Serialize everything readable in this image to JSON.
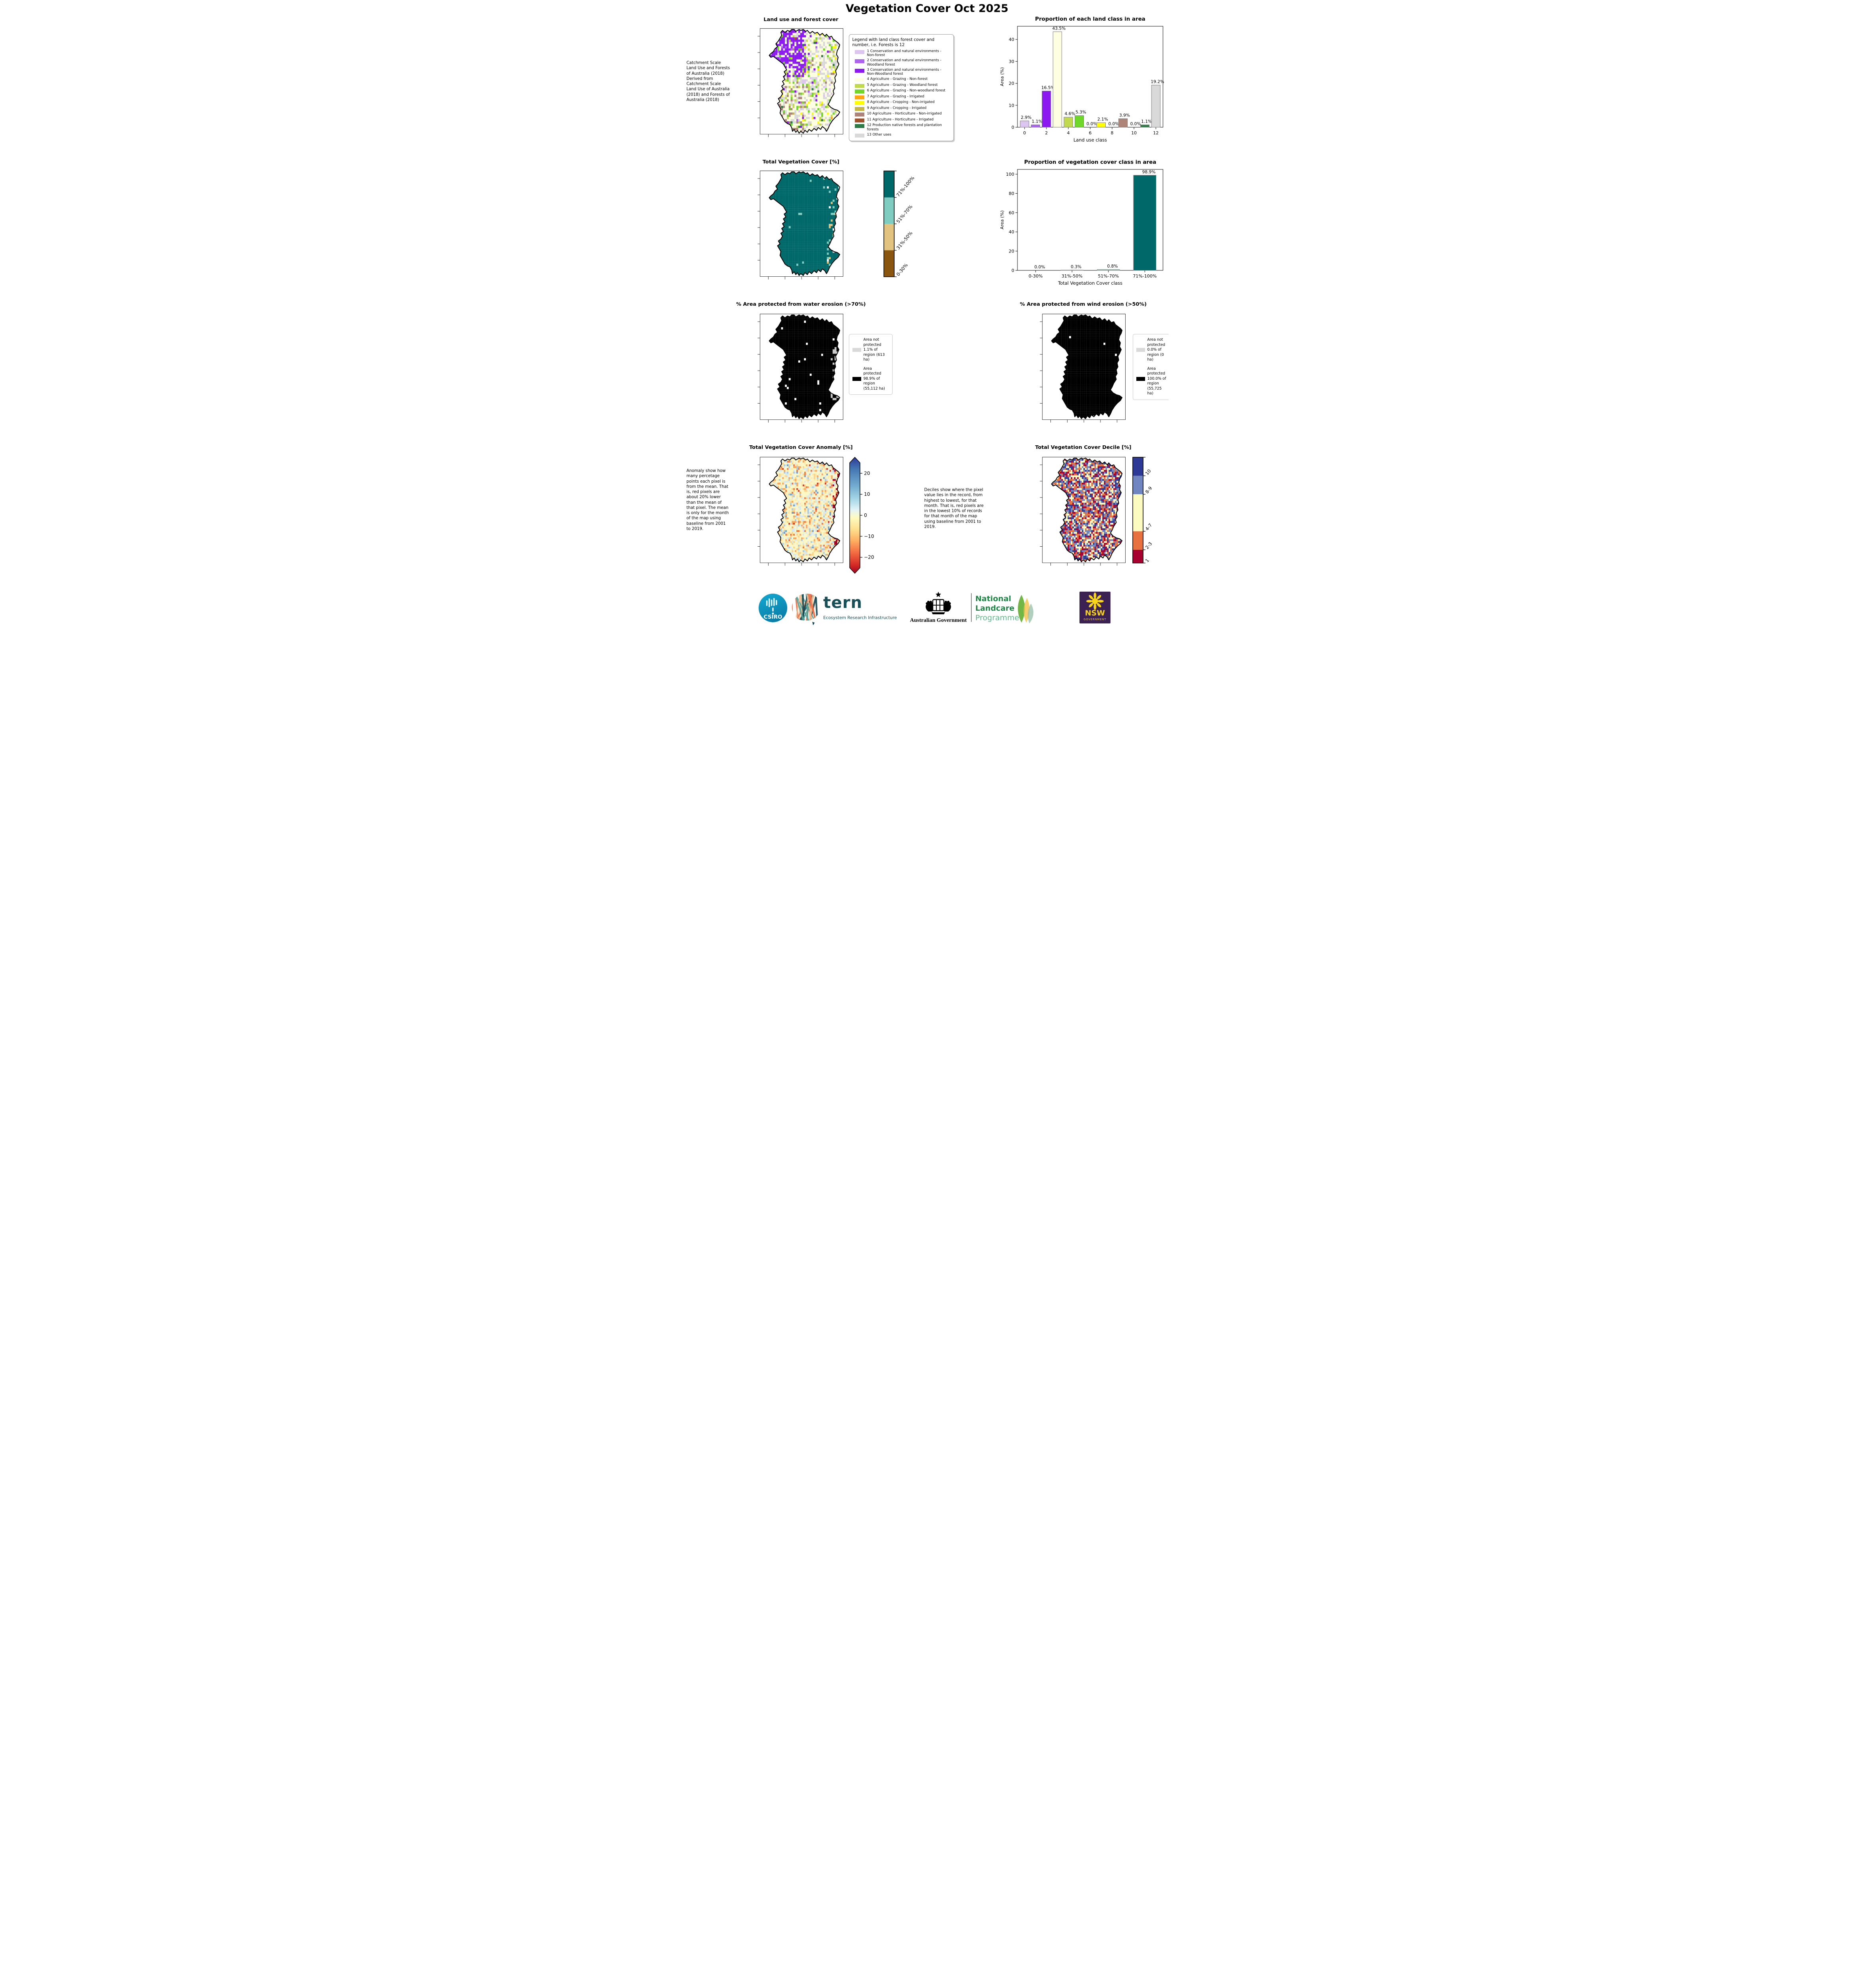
{
  "page_title": "Vegetation Cover Oct 2025",
  "land_use": {
    "title": "Land use and forest cover",
    "side_text": " Catchment Scale Land Use and Forests of Australia (2018) Derived from Catchment Scale Land Use of Australia (2018) and Forests of Australia (2018)",
    "legend_title": "Legend with land class forest cover and number, i.e. Forests is 12",
    "classes": [
      {
        "label": "1 Conservation and natural environments - Non-forest",
        "color": "#dcc5f0"
      },
      {
        "label": "2 Conservation and natural environments - Woodland forest",
        "color": "#ad62f0"
      },
      {
        "label": "3 Conservation and natural environments - Non-Woodland forest",
        "color": "#8c1af0"
      },
      {
        "label": "4 Agriculture - Grazing - Non-forest",
        "color": "#fdffe0"
      },
      {
        "label": "5 Agriculture - Grazing - Woodland forest",
        "color": "#c0d94e"
      },
      {
        "label": "6 Agriculture - Grazing - Non-woodland forest",
        "color": "#6fd62a"
      },
      {
        "label": "7 Agriculture - Grazing - Irrigated",
        "color": "#ffa510"
      },
      {
        "label": "8 Agriculture - Cropping - Non-irrigated",
        "color": "#ffff00"
      },
      {
        "label": "9 Agriculture - Cropping - Irrigated",
        "color": "#c5b54b"
      },
      {
        "label": "10 Agriculture - Horticulture - Non-irrigated",
        "color": "#ae8378"
      },
      {
        "label": "11 Agriculture - Horticulture - Irrigated",
        "color": "#a0522d"
      },
      {
        "label": "12 Production native forests and plantation forests",
        "color": "#2e7d46"
      },
      {
        "label": "13 Other uses",
        "color": "#d9d9d9"
      }
    ]
  },
  "chart_data": [
    {
      "type": "bar",
      "title": "Proportion of each land class in area",
      "xlabel": "Land use class",
      "ylabel": "Area (%)",
      "x": [
        0,
        1,
        2,
        3,
        4,
        5,
        6,
        7,
        8,
        9,
        10,
        11,
        12
      ],
      "values": [
        2.9,
        1.1,
        16.5,
        43.5,
        4.6,
        5.3,
        0.0,
        2.1,
        0.0,
        3.9,
        0.0,
        1.1,
        19.2
      ],
      "labels": [
        "2.9%",
        "1.1%",
        "16.5%",
        "43.5%",
        "4.6%",
        "5.3%",
        "0.0%",
        "2.1%",
        "0.0%",
        "3.9%",
        "0.0%",
        "1.1%",
        "19.2%"
      ],
      "bar_colors": [
        "#dcc5f0",
        "#ad62f0",
        "#8c1af0",
        "#fdffe0",
        "#c0d94e",
        "#6fd62a",
        "#ffa510",
        "#ffff00",
        "#c5b54b",
        "#ae8378",
        "#a0522d",
        "#2e7d46",
        "#d9d9d9"
      ],
      "xticks": [
        0,
        2,
        4,
        6,
        8,
        10,
        12
      ],
      "yticks": [
        0,
        10,
        20,
        30,
        40
      ],
      "ylim": [
        0,
        46
      ],
      "legend_position": "none",
      "grid": false
    },
    {
      "type": "bar",
      "title": "Proportion of vegetation cover class in area",
      "xlabel": "Total Vegetation Cover class",
      "ylabel": "Area (%)",
      "categories": [
        "0-30%",
        "31%-50%",
        "51%-70%",
        "71%-100%"
      ],
      "values": [
        0.0,
        0.3,
        0.8,
        98.9
      ],
      "labels": [
        "0.0%",
        "0.3%",
        "0.8%",
        "98.9%"
      ],
      "bar_colors": [
        "#8a560f",
        "#e2c37f",
        "#7fccc0",
        "#006868"
      ],
      "yticks": [
        0,
        20,
        40,
        60,
        80,
        100
      ],
      "ylim": [
        0,
        105
      ],
      "legend_position": "none",
      "grid": false
    }
  ],
  "veg_cover": {
    "title": "Total Vegetation Cover [%]",
    "colorbar": [
      {
        "label": "71%-100%",
        "color": "#006868"
      },
      {
        "label": "51%-70%",
        "color": "#7fccc0"
      },
      {
        "label": "31%-50%",
        "color": "#e2c37f"
      },
      {
        "label": "0-30%",
        "color": "#8a560f"
      }
    ]
  },
  "water_erosion": {
    "title": "% Area protected from water erosion (>70%)",
    "legend": [
      {
        "label": "Area not protected 1.1% of region (613 ha)",
        "color": "#d9d9d9"
      },
      {
        "label": "Area protected 98.9% of region (55,112 ha)",
        "color": "#000000"
      }
    ]
  },
  "wind_erosion": {
    "title": "% Area protected from wind erosion (>50%)",
    "legend": [
      {
        "label": "Area not protected 0.0% of region (0 ha)",
        "color": "#d9d9d9"
      },
      {
        "label": "Area protected 100.0% of region (55,725 ha)",
        "color": "#000000"
      }
    ]
  },
  "anomaly": {
    "title": "Total Vegetation Cover Anomaly [%]",
    "side_text": "Anomaly show how many percetage points each pixel is from the mean. That is, red pixels are about 20% lower than the mean of that pixel. The mean is only for the month of the map using baseline from 2001 to 2019.",
    "colorbar_ticks": [
      "20",
      "10",
      "0",
      "−10",
      "−20"
    ]
  },
  "decile": {
    "title": "Total Vegetation Cover Decile [%]",
    "side_text": "Deciles show where the pixel value lies in the record, from highest to lowest, for that month. That is, red pixels are in the lowest 10% of records for that month of the map using baseline from 2001 to 2019.",
    "colorbar": [
      {
        "label": "10",
        "color": "#2c3a96",
        "frac": 0.175
      },
      {
        "label": "8-9",
        "color": "#7086c0",
        "frac": 0.175
      },
      {
        "label": "4-7",
        "color": "#fdfcc0",
        "frac": 0.35
      },
      {
        "label": "2-3",
        "color": "#e87140",
        "frac": 0.175
      },
      {
        "label": "1",
        "color": "#a80030",
        "frac": 0.125
      }
    ]
  },
  "footer": {
    "csiro_label": "CSIRO",
    "tern_label": "tern",
    "tern_sub": "Ecosystem Research Infrastructure",
    "aus_gov": "Australian Government",
    "landcare_1": "National",
    "landcare_2": "Landcare",
    "landcare_3": "Programme",
    "nsw": "NSW",
    "nsw_sub": "GOVERNMENT"
  }
}
